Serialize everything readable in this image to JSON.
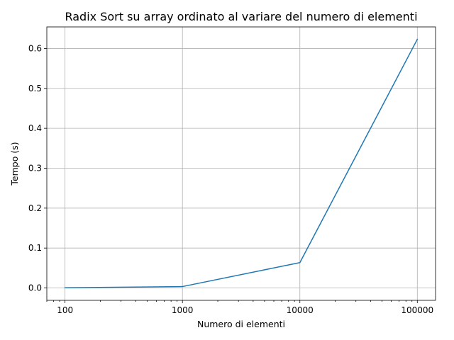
{
  "chart_data": {
    "type": "line",
    "title": "Radix Sort su array ordinato al variare del numero di elementi",
    "xlabel": "Numero di elementi",
    "ylabel": "Tempo (s)",
    "x_scale": "log",
    "x_ticks": [
      100,
      1000,
      10000,
      100000
    ],
    "x_tick_labels": [
      "100",
      "1000",
      "10000",
      "100000"
    ],
    "y_ticks": [
      0.0,
      0.1,
      0.2,
      0.3,
      0.4,
      0.5,
      0.6
    ],
    "y_tick_labels": [
      "0.0",
      "0.1",
      "0.2",
      "0.3",
      "0.4",
      "0.5",
      "0.6"
    ],
    "xlim": [
      70,
      143000
    ],
    "ylim": [
      -0.031,
      0.654
    ],
    "grid": true,
    "series": [
      {
        "x": [
          100,
          1000,
          10000,
          100000
        ],
        "values": [
          0.0006,
          0.0035,
          0.0635,
          0.623
        ],
        "color": "#1f77b4"
      }
    ]
  }
}
